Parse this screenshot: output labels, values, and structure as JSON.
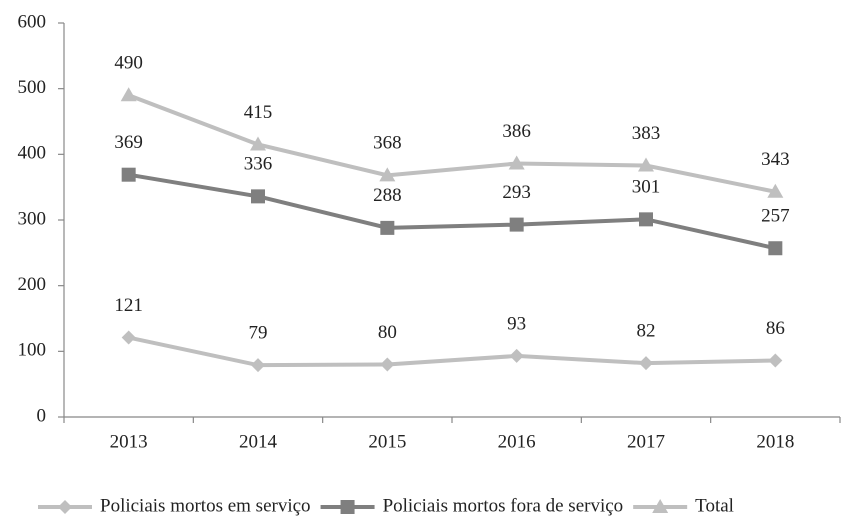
{
  "chart_data": {
    "type": "line",
    "categories": [
      "2013",
      "2014",
      "2015",
      "2016",
      "2017",
      "2018"
    ],
    "series": [
      {
        "name": "Policiais mortos em serviço",
        "color": "#bfbfbf",
        "marker": "diamond",
        "values": [
          121,
          79,
          80,
          93,
          82,
          86
        ]
      },
      {
        "name": "Policiais mortos fora de serviço",
        "color": "#7f7f7f",
        "marker": "square",
        "values": [
          369,
          336,
          288,
          293,
          301,
          257
        ]
      },
      {
        "name": "Total",
        "color": "#bfbfbf",
        "marker": "triangle",
        "values": [
          490,
          415,
          368,
          386,
          383,
          343
        ]
      }
    ],
    "ylim": [
      0,
      600
    ],
    "yticks": [
      0,
      100,
      200,
      300,
      400,
      500,
      600
    ],
    "legend": "bottom"
  }
}
